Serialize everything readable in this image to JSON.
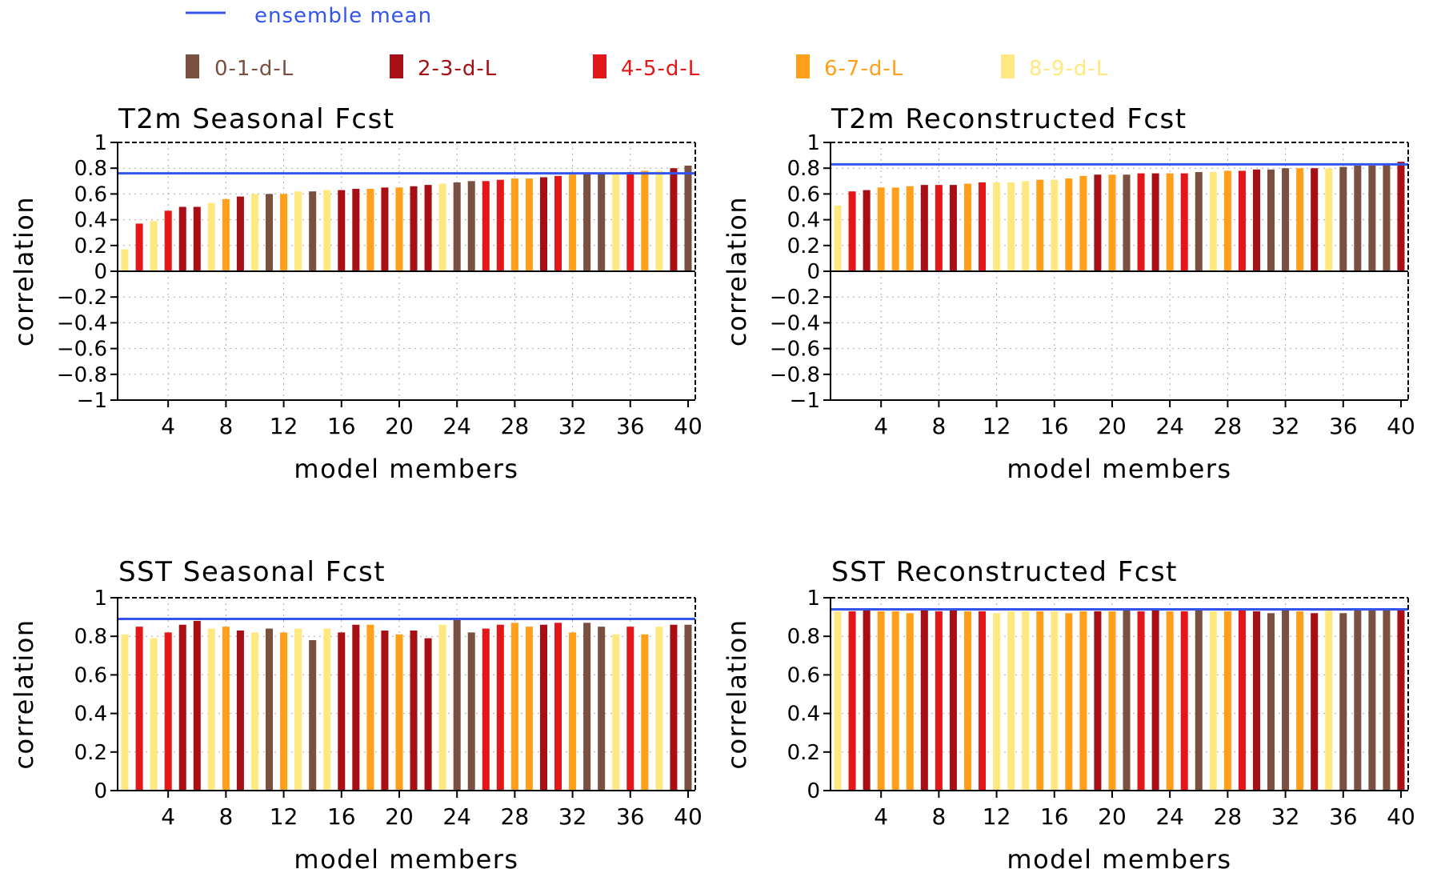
{
  "legend": {
    "mean_line": {
      "label": "ensemble mean",
      "color": "#3355ee"
    },
    "leads": [
      {
        "label": "0-1-d-L",
        "color": "#7a5040"
      },
      {
        "label": "2-3-d-L",
        "color": "#a50f15"
      },
      {
        "label": "4-5-d-L",
        "color": "#e3171a"
      },
      {
        "label": "6-7-d-L",
        "color": "#ff9f1a"
      },
      {
        "label": "8-9-d-L",
        "color": "#ffe880"
      }
    ]
  },
  "chart_data": [
    {
      "type": "bar",
      "title": "T2m Seasonal Fcst",
      "xlabel": "model members",
      "ylabel": "correlation",
      "x_ticks": [
        4,
        8,
        12,
        16,
        20,
        24,
        28,
        32,
        36,
        40
      ],
      "ylim": [
        -1,
        1
      ],
      "y_ticks": [
        {
          "v": 1,
          "t": "1"
        },
        {
          "v": 0.8,
          "t": "0.8"
        },
        {
          "v": 0.6,
          "t": "0.6"
        },
        {
          "v": 0.4,
          "t": "0.4"
        },
        {
          "v": 0.2,
          "t": "0.2"
        },
        {
          "v": 0,
          "t": "0"
        },
        {
          "v": -0.2,
          "t": "−0.2"
        },
        {
          "v": -0.4,
          "t": "−0.4"
        },
        {
          "v": -0.6,
          "t": "−0.6"
        },
        {
          "v": -0.8,
          "t": "−0.8"
        },
        {
          "v": -1,
          "t": "−1"
        }
      ],
      "grid": true,
      "ensemble_mean": 0.76,
      "values": [
        0.17,
        0.37,
        0.39,
        0.47,
        0.5,
        0.5,
        0.53,
        0.56,
        0.58,
        0.6,
        0.6,
        0.6,
        0.62,
        0.62,
        0.63,
        0.63,
        0.64,
        0.64,
        0.65,
        0.65,
        0.66,
        0.67,
        0.68,
        0.69,
        0.7,
        0.7,
        0.71,
        0.72,
        0.72,
        0.73,
        0.74,
        0.75,
        0.76,
        0.76,
        0.76,
        0.77,
        0.78,
        0.78,
        0.8,
        0.82
      ],
      "leads": [
        4,
        2,
        4,
        2,
        1,
        1,
        4,
        3,
        1,
        4,
        0,
        3,
        4,
        0,
        4,
        1,
        1,
        3,
        1,
        3,
        1,
        1,
        4,
        0,
        0,
        2,
        2,
        3,
        3,
        1,
        2,
        3,
        0,
        0,
        4,
        2,
        3,
        4,
        1,
        0
      ]
    },
    {
      "type": "bar",
      "title": "T2m Reconstructed Fcst",
      "xlabel": "model members",
      "ylabel": "correlation",
      "x_ticks": [
        4,
        8,
        12,
        16,
        20,
        24,
        28,
        32,
        36,
        40
      ],
      "ylim": [
        -1,
        1
      ],
      "y_ticks": [
        {
          "v": 1,
          "t": "1"
        },
        {
          "v": 0.8,
          "t": "0.8"
        },
        {
          "v": 0.6,
          "t": "0.6"
        },
        {
          "v": 0.4,
          "t": "0.4"
        },
        {
          "v": 0.2,
          "t": "0.2"
        },
        {
          "v": 0,
          "t": "0"
        },
        {
          "v": -0.2,
          "t": "−0.2"
        },
        {
          "v": -0.4,
          "t": "−0.4"
        },
        {
          "v": -0.6,
          "t": "−0.6"
        },
        {
          "v": -0.8,
          "t": "−0.8"
        },
        {
          "v": -1,
          "t": "−1"
        }
      ],
      "grid": true,
      "ensemble_mean": 0.83,
      "values": [
        0.51,
        0.62,
        0.63,
        0.65,
        0.65,
        0.66,
        0.67,
        0.67,
        0.67,
        0.68,
        0.69,
        0.69,
        0.69,
        0.7,
        0.71,
        0.71,
        0.72,
        0.74,
        0.75,
        0.75,
        0.75,
        0.76,
        0.76,
        0.76,
        0.76,
        0.77,
        0.77,
        0.78,
        0.78,
        0.79,
        0.79,
        0.8,
        0.8,
        0.8,
        0.8,
        0.81,
        0.82,
        0.82,
        0.83,
        0.85
      ],
      "leads": [
        4,
        2,
        1,
        3,
        3,
        3,
        1,
        2,
        1,
        3,
        2,
        4,
        4,
        4,
        3,
        4,
        3,
        3,
        1,
        3,
        0,
        2,
        1,
        3,
        2,
        0,
        4,
        3,
        2,
        1,
        0,
        0,
        3,
        1,
        4,
        0,
        0,
        0,
        0,
        1
      ]
    },
    {
      "type": "bar",
      "title": "SST Seasonal Fcst",
      "xlabel": "model members",
      "ylabel": "correlation",
      "x_ticks": [
        4,
        8,
        12,
        16,
        20,
        24,
        28,
        32,
        36,
        40
      ],
      "ylim": [
        0,
        1
      ],
      "y_ticks": [
        {
          "v": 1,
          "t": "1"
        },
        {
          "v": 0.8,
          "t": "0.8"
        },
        {
          "v": 0.6,
          "t": "0.6"
        },
        {
          "v": 0.4,
          "t": "0.4"
        },
        {
          "v": 0.2,
          "t": "0.2"
        },
        {
          "v": 0,
          "t": "0"
        }
      ],
      "grid": true,
      "ensemble_mean": 0.89,
      "values": [
        0.81,
        0.85,
        0.79,
        0.82,
        0.86,
        0.88,
        0.84,
        0.85,
        0.83,
        0.82,
        0.84,
        0.82,
        0.84,
        0.78,
        0.84,
        0.82,
        0.86,
        0.86,
        0.83,
        0.81,
        0.83,
        0.79,
        0.86,
        0.89,
        0.82,
        0.84,
        0.86,
        0.87,
        0.85,
        0.86,
        0.87,
        0.82,
        0.87,
        0.85,
        0.81,
        0.85,
        0.81,
        0.85,
        0.86,
        0.86
      ],
      "leads": [
        4,
        2,
        4,
        2,
        1,
        1,
        4,
        3,
        1,
        4,
        0,
        3,
        4,
        0,
        4,
        1,
        1,
        3,
        1,
        3,
        1,
        1,
        4,
        0,
        0,
        2,
        2,
        3,
        3,
        1,
        2,
        3,
        0,
        0,
        4,
        2,
        3,
        4,
        1,
        0
      ]
    },
    {
      "type": "bar",
      "title": "SST Reconstructed Fcst",
      "xlabel": "model members",
      "ylabel": "correlation",
      "x_ticks": [
        4,
        8,
        12,
        16,
        20,
        24,
        28,
        32,
        36,
        40
      ],
      "ylim": [
        0,
        1
      ],
      "y_ticks": [
        {
          "v": 1,
          "t": "1"
        },
        {
          "v": 0.8,
          "t": "0.8"
        },
        {
          "v": 0.6,
          "t": "0.6"
        },
        {
          "v": 0.4,
          "t": "0.4"
        },
        {
          "v": 0.2,
          "t": "0.2"
        },
        {
          "v": 0,
          "t": "0"
        }
      ],
      "grid": true,
      "ensemble_mean": 0.94,
      "values": [
        0.93,
        0.93,
        0.94,
        0.93,
        0.93,
        0.92,
        0.94,
        0.93,
        0.94,
        0.93,
        0.93,
        0.92,
        0.93,
        0.93,
        0.93,
        0.93,
        0.92,
        0.93,
        0.93,
        0.93,
        0.94,
        0.93,
        0.94,
        0.93,
        0.93,
        0.94,
        0.93,
        0.93,
        0.94,
        0.93,
        0.92,
        0.94,
        0.93,
        0.92,
        0.94,
        0.92,
        0.94,
        0.94,
        0.94,
        0.94
      ],
      "leads": [
        4,
        2,
        1,
        3,
        3,
        3,
        1,
        2,
        1,
        3,
        2,
        4,
        4,
        4,
        3,
        4,
        3,
        3,
        1,
        3,
        0,
        2,
        1,
        3,
        2,
        0,
        4,
        3,
        2,
        1,
        0,
        0,
        3,
        1,
        4,
        0,
        0,
        0,
        0,
        1
      ]
    }
  ]
}
